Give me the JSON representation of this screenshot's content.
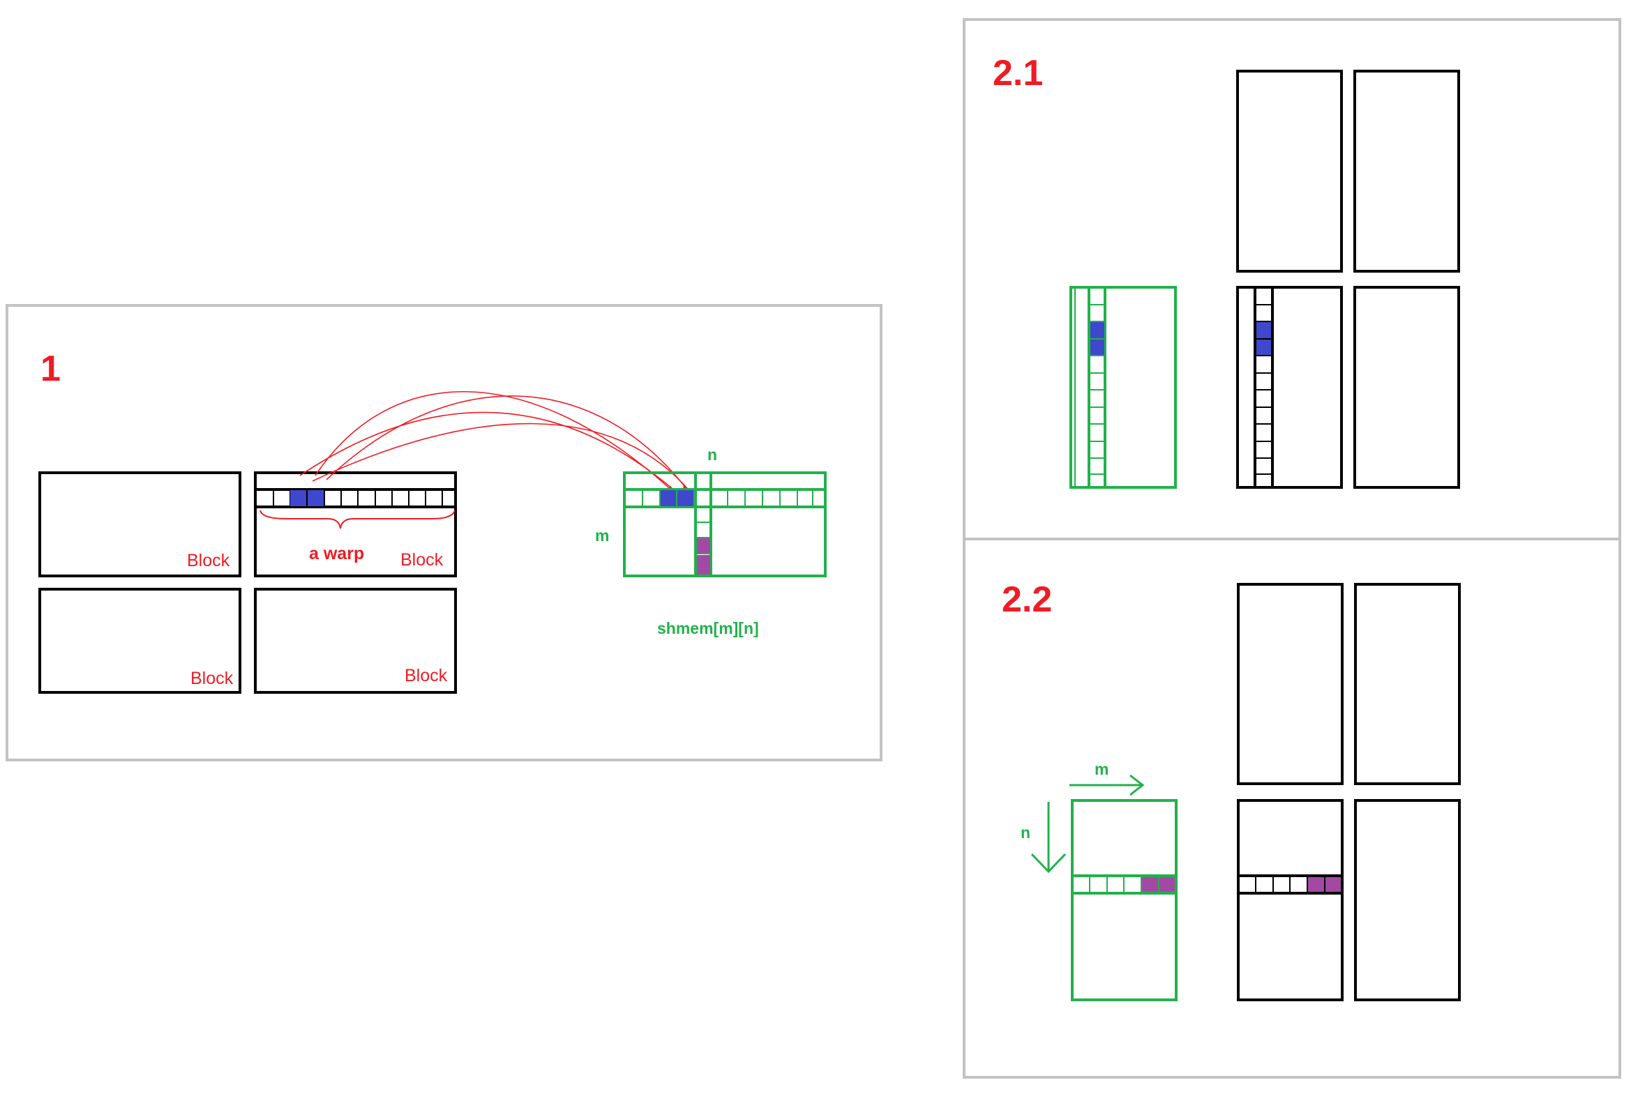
{
  "panels": {
    "p1": {
      "number": "1"
    },
    "p21": {
      "number": "2.1"
    },
    "p22": {
      "number": "2.2"
    }
  },
  "labels": {
    "block": "Block",
    "warp": "a warp",
    "shmem": "shmem[m][n]",
    "n": "n",
    "m": "m"
  },
  "colors": {
    "panel_border": "#c3c3c3",
    "block_border": "#000000",
    "shmem": "#22b14c",
    "annotation": "#ee1c24",
    "thread_loaded": "#3f48cc",
    "thread_read": "#a349a4"
  },
  "icons": [
    "arrow-right-icon",
    "arrow-down-icon"
  ]
}
